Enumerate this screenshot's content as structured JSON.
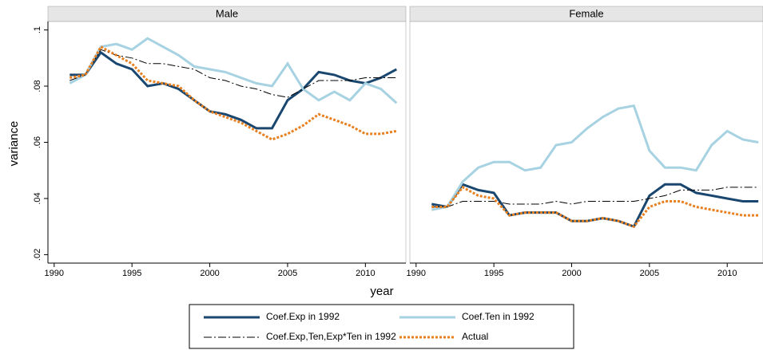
{
  "chart_data": [
    {
      "type": "line",
      "title": "Male",
      "y_label": "variance",
      "x_label": "year",
      "x": [
        1991,
        1992,
        1993,
        1994,
        1995,
        1996,
        1997,
        1998,
        1999,
        2000,
        2001,
        2002,
        2003,
        2004,
        2005,
        2006,
        2007,
        2008,
        2009,
        2010,
        2011,
        2012
      ],
      "xlim": [
        1989.6,
        2012.6
      ],
      "xticks": [
        1990,
        1995,
        2000,
        2005,
        2010
      ],
      "ylim": [
        0.017,
        0.103
      ],
      "yticks": [
        {
          "value": 0.02,
          "label": ".02"
        },
        {
          "value": 0.04,
          "label": ".04"
        },
        {
          "value": 0.06,
          "label": ".06"
        },
        {
          "value": 0.08,
          "label": ".08"
        },
        {
          "value": 0.1,
          "label": ".1"
        }
      ],
      "grid": false,
      "series": [
        {
          "name": "Coef.Exp in 1992",
          "color": "#1a476f",
          "style": "solid",
          "width": 3,
          "values": [
            0.084,
            0.084,
            0.092,
            0.088,
            0.086,
            0.08,
            0.081,
            0.079,
            0.075,
            0.071,
            0.07,
            0.068,
            0.065,
            0.065,
            0.075,
            0.079,
            0.085,
            0.084,
            0.082,
            0.081,
            0.083,
            0.086
          ]
        },
        {
          "name": "Coef.Ten in 1992",
          "color": "#a7d2e2",
          "style": "solid",
          "width": 3,
          "values": [
            0.081,
            0.084,
            0.094,
            0.095,
            0.093,
            0.097,
            0.094,
            0.091,
            0.087,
            0.086,
            0.085,
            0.083,
            0.081,
            0.08,
            0.088,
            0.079,
            0.075,
            0.078,
            0.075,
            0.081,
            0.079,
            0.074
          ]
        },
        {
          "name": "Coef.Exp,Ten,Exp*Ten in 1992",
          "color": "#000000",
          "style": "dashdot",
          "width": 1,
          "values": [
            0.082,
            0.084,
            0.093,
            0.091,
            0.09,
            0.088,
            0.088,
            0.087,
            0.086,
            0.083,
            0.082,
            0.08,
            0.079,
            0.077,
            0.076,
            0.079,
            0.082,
            0.082,
            0.082,
            0.083,
            0.083,
            0.083
          ]
        },
        {
          "name": "Actual",
          "color": "#e8801f",
          "style": "dot",
          "width": 3,
          "values": [
            0.083,
            0.084,
            0.094,
            0.091,
            0.088,
            0.082,
            0.081,
            0.08,
            0.075,
            0.071,
            0.069,
            0.067,
            0.064,
            0.061,
            0.063,
            0.066,
            0.07,
            0.068,
            0.066,
            0.063,
            0.063,
            0.064
          ]
        }
      ]
    },
    {
      "type": "line",
      "title": "Female",
      "x": [
        1991,
        1992,
        1993,
        1994,
        1995,
        1996,
        1997,
        1998,
        1999,
        2000,
        2001,
        2002,
        2003,
        2004,
        2005,
        2006,
        2007,
        2008,
        2009,
        2010,
        2011,
        2012
      ],
      "xlim": [
        1989.6,
        2012.3
      ],
      "xticks": [
        1990,
        1995,
        2000,
        2005,
        2010
      ],
      "ylim": [
        0.017,
        0.103
      ],
      "grid": false,
      "series": [
        {
          "name": "Coef.Exp in 1992",
          "color": "#1a476f",
          "style": "solid",
          "width": 3,
          "values": [
            0.038,
            0.037,
            0.045,
            0.043,
            0.042,
            0.034,
            0.035,
            0.035,
            0.035,
            0.032,
            0.032,
            0.033,
            0.032,
            0.03,
            0.041,
            0.045,
            0.045,
            0.042,
            0.041,
            0.04,
            0.039,
            0.039
          ]
        },
        {
          "name": "Coef.Ten in 1992",
          "color": "#a7d2e2",
          "style": "solid",
          "width": 3,
          "values": [
            0.036,
            0.037,
            0.046,
            0.051,
            0.053,
            0.053,
            0.05,
            0.051,
            0.059,
            0.06,
            0.065,
            0.069,
            0.072,
            0.073,
            0.057,
            0.051,
            0.051,
            0.05,
            0.059,
            0.064,
            0.061,
            0.06
          ]
        },
        {
          "name": "Coef.Exp,Ten,Exp*Ten in 1992",
          "color": "#000000",
          "style": "dashdot",
          "width": 1,
          "values": [
            0.037,
            0.037,
            0.039,
            0.039,
            0.039,
            0.038,
            0.038,
            0.038,
            0.039,
            0.038,
            0.039,
            0.039,
            0.039,
            0.039,
            0.04,
            0.041,
            0.043,
            0.043,
            0.043,
            0.044,
            0.044,
            0.044
          ]
        },
        {
          "name": "Actual",
          "color": "#e8801f",
          "style": "dot",
          "width": 3,
          "values": [
            0.037,
            0.037,
            0.044,
            0.041,
            0.04,
            0.034,
            0.035,
            0.035,
            0.035,
            0.032,
            0.032,
            0.033,
            0.032,
            0.03,
            0.037,
            0.039,
            0.039,
            0.037,
            0.036,
            0.035,
            0.034,
            0.034
          ]
        }
      ]
    }
  ]
}
